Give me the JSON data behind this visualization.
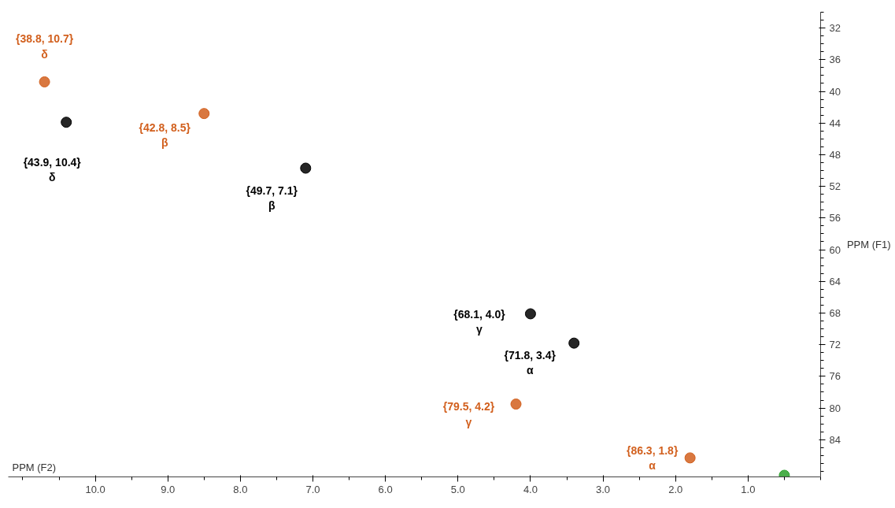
{
  "chart_data": {
    "type": "scatter",
    "xlabel": "PPM (F2)",
    "ylabel": "PPM (F1)",
    "xlim": [
      11.2,
      0
    ],
    "ylim": [
      88.7,
      30
    ],
    "xticks": [
      {
        "value": 10,
        "label": "10.0"
      },
      {
        "value": 9,
        "label": "9.0"
      },
      {
        "value": 8,
        "label": "8.0"
      },
      {
        "value": 7,
        "label": "7.0"
      },
      {
        "value": 6,
        "label": "6.0"
      },
      {
        "value": 5,
        "label": "5.0"
      },
      {
        "value": 4,
        "label": "4.0"
      },
      {
        "value": 3,
        "label": "3.0"
      },
      {
        "value": 2,
        "label": "2.0"
      },
      {
        "value": 1,
        "label": "1.0"
      }
    ],
    "yticks": [
      32,
      36,
      40,
      44,
      48,
      52,
      56,
      60,
      64,
      68,
      72,
      76,
      80,
      84
    ],
    "marker": "circle",
    "series": [
      {
        "color": "#d2601e",
        "x": [
          10.7,
          8.5,
          4.2,
          1.8
        ],
        "values": [
          38.8,
          42.8,
          79.5,
          86.3
        ],
        "value_labels": [
          "{38.8, 10.7}\nδ",
          "{42.8, 8.5}\nβ",
          "{79.5, 4.2}\nγ",
          "{86.3, 1.8}\nα"
        ]
      },
      {
        "color": "#000000",
        "x": [
          10.4,
          7.1,
          4.0,
          3.4
        ],
        "values": [
          43.9,
          49.7,
          68.1,
          71.8
        ],
        "value_labels": [
          "{43.9, 10.4}\nδ",
          "{49.7, 7.1}\nβ",
          "{68.1, 4.0}\nγ",
          "{71.8, 3.4}\nα"
        ]
      },
      {
        "color": "#2ca02c",
        "x": [
          0.5
        ],
        "values": [
          88.5
        ],
        "value_labels": [
          null
        ]
      }
    ]
  }
}
